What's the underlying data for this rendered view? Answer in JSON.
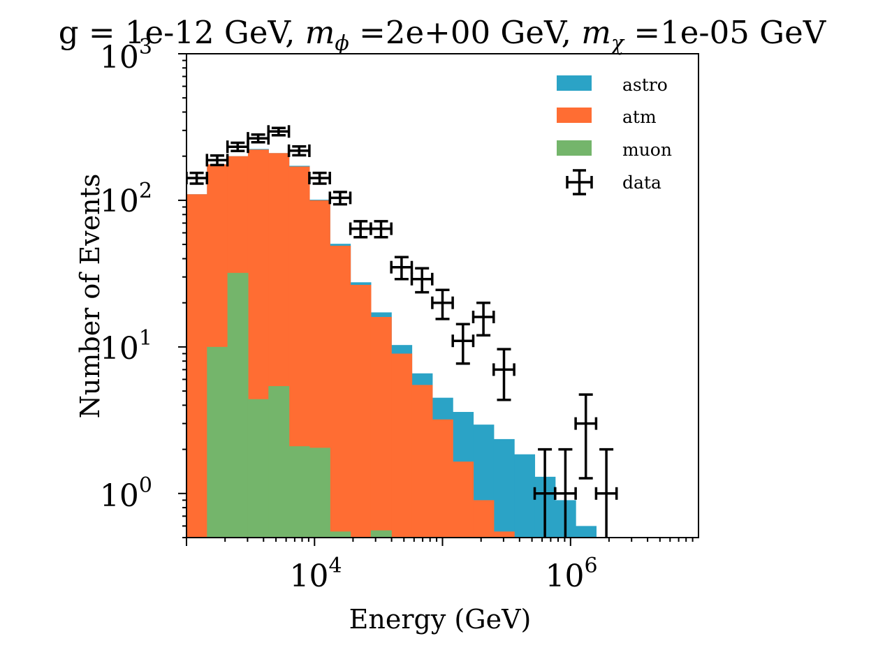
{
  "chart_data": {
    "type": "bar",
    "subtype": "stacked-histogram-with-data-errorbars",
    "title": "g = 1e-12 GeV, m_ϕ =2e+00 GeV, m_χ =1e-05 GeV",
    "title_parts": {
      "prefix": "g = 1e-12 GeV, ",
      "m_phi_base": "m",
      "m_phi_sub": "ϕ",
      "m_phi_value": " =2e+00 GeV, ",
      "m_chi_base": "m",
      "m_chi_sub": "χ",
      "m_chi_value": " =1e-05 GeV"
    },
    "xlabel": "Energy (GeV)",
    "ylabel": "Number of Events",
    "xscale": "log",
    "yscale": "log",
    "xlim": [
      1000,
      10000000
    ],
    "ylim": [
      0.5,
      1000
    ],
    "x_ticks": [
      {
        "value": 10000,
        "base": "10",
        "exp": "4"
      },
      {
        "value": 1000000,
        "base": "10",
        "exp": "6"
      }
    ],
    "y_ticks": [
      {
        "value": 1,
        "base": "10",
        "exp": "0"
      },
      {
        "value": 10,
        "base": "10",
        "exp": "1"
      },
      {
        "value": 100,
        "base": "10",
        "exp": "2"
      },
      {
        "value": 1000,
        "base": "10",
        "exp": "3"
      }
    ],
    "grid": false,
    "legend_position": "top-right",
    "bin_edges": [
      1000,
      1445,
      2089,
      3020,
      4365,
      6310,
      9120,
      13183,
      19055,
      27542,
      39811,
      57544,
      83176,
      120226,
      173780,
      251189,
      363078,
      524807,
      758578,
      1096478,
      1584893,
      2290868,
      3311311
    ],
    "series": [
      {
        "name": "muon",
        "key": "muon",
        "color": "#74b56b",
        "values": [
          0,
          10,
          32,
          4.4,
          5.4,
          2.1,
          2.05,
          0.55,
          0,
          0.56,
          0,
          0,
          0,
          0,
          0,
          0,
          0,
          0,
          0,
          0,
          0,
          0
        ]
      },
      {
        "name": "atm",
        "key": "atm",
        "color": "#ff6d33",
        "values": [
          110,
          176,
          200,
          222,
          210,
          170,
          100,
          49,
          26.5,
          16,
          9,
          5.5,
          3.2,
          1.65,
          0.9,
          0.55,
          0,
          0,
          0,
          0,
          0,
          0
        ]
      },
      {
        "name": "astro",
        "key": "astro",
        "color": "#2ba3c6",
        "values": [
          110,
          176,
          200,
          224,
          210,
          172,
          101,
          50.5,
          27.6,
          17.2,
          10.3,
          6.6,
          4.5,
          3.6,
          2.95,
          2.35,
          1.85,
          1.3,
          0.9,
          0.6,
          0,
          0
        ]
      }
    ],
    "data_points": [
      {
        "x": 1202,
        "y": 142,
        "err": 12
      },
      {
        "x": 1738,
        "y": 188,
        "err": 14
      },
      {
        "x": 2512,
        "y": 232,
        "err": 15
      },
      {
        "x": 3631,
        "y": 265,
        "err": 16
      },
      {
        "x": 5248,
        "y": 295,
        "err": 17
      },
      {
        "x": 7586,
        "y": 218,
        "err": 15
      },
      {
        "x": 10965,
        "y": 142,
        "err": 12
      },
      {
        "x": 15849,
        "y": 104,
        "err": 10
      },
      {
        "x": 22909,
        "y": 64,
        "err": 8
      },
      {
        "x": 33113,
        "y": 64,
        "err": 8
      },
      {
        "x": 47863,
        "y": 35,
        "err": 6
      },
      {
        "x": 69183,
        "y": 29,
        "err": 5.4
      },
      {
        "x": 100000,
        "y": 20,
        "err": 4.5
      },
      {
        "x": 144544,
        "y": 11,
        "err": 3.3
      },
      {
        "x": 208930,
        "y": 16,
        "err": 4
      },
      {
        "x": 301995,
        "y": 7,
        "err": 2.65
      },
      {
        "x": 630957,
        "y": 1,
        "err": 1
      },
      {
        "x": 912011,
        "y": 1,
        "err": 1
      },
      {
        "x": 1318257,
        "y": 3,
        "err": 1.73
      },
      {
        "x": 1905461,
        "y": 1,
        "err": 1
      }
    ],
    "legend": [
      {
        "label": "astro",
        "kind": "patch",
        "color": "#2ba3c6"
      },
      {
        "label": "atm",
        "kind": "patch",
        "color": "#ff6d33"
      },
      {
        "label": "muon",
        "kind": "patch",
        "color": "#74b56b"
      },
      {
        "label": "data",
        "kind": "errorbar",
        "color": "#000000"
      }
    ]
  }
}
